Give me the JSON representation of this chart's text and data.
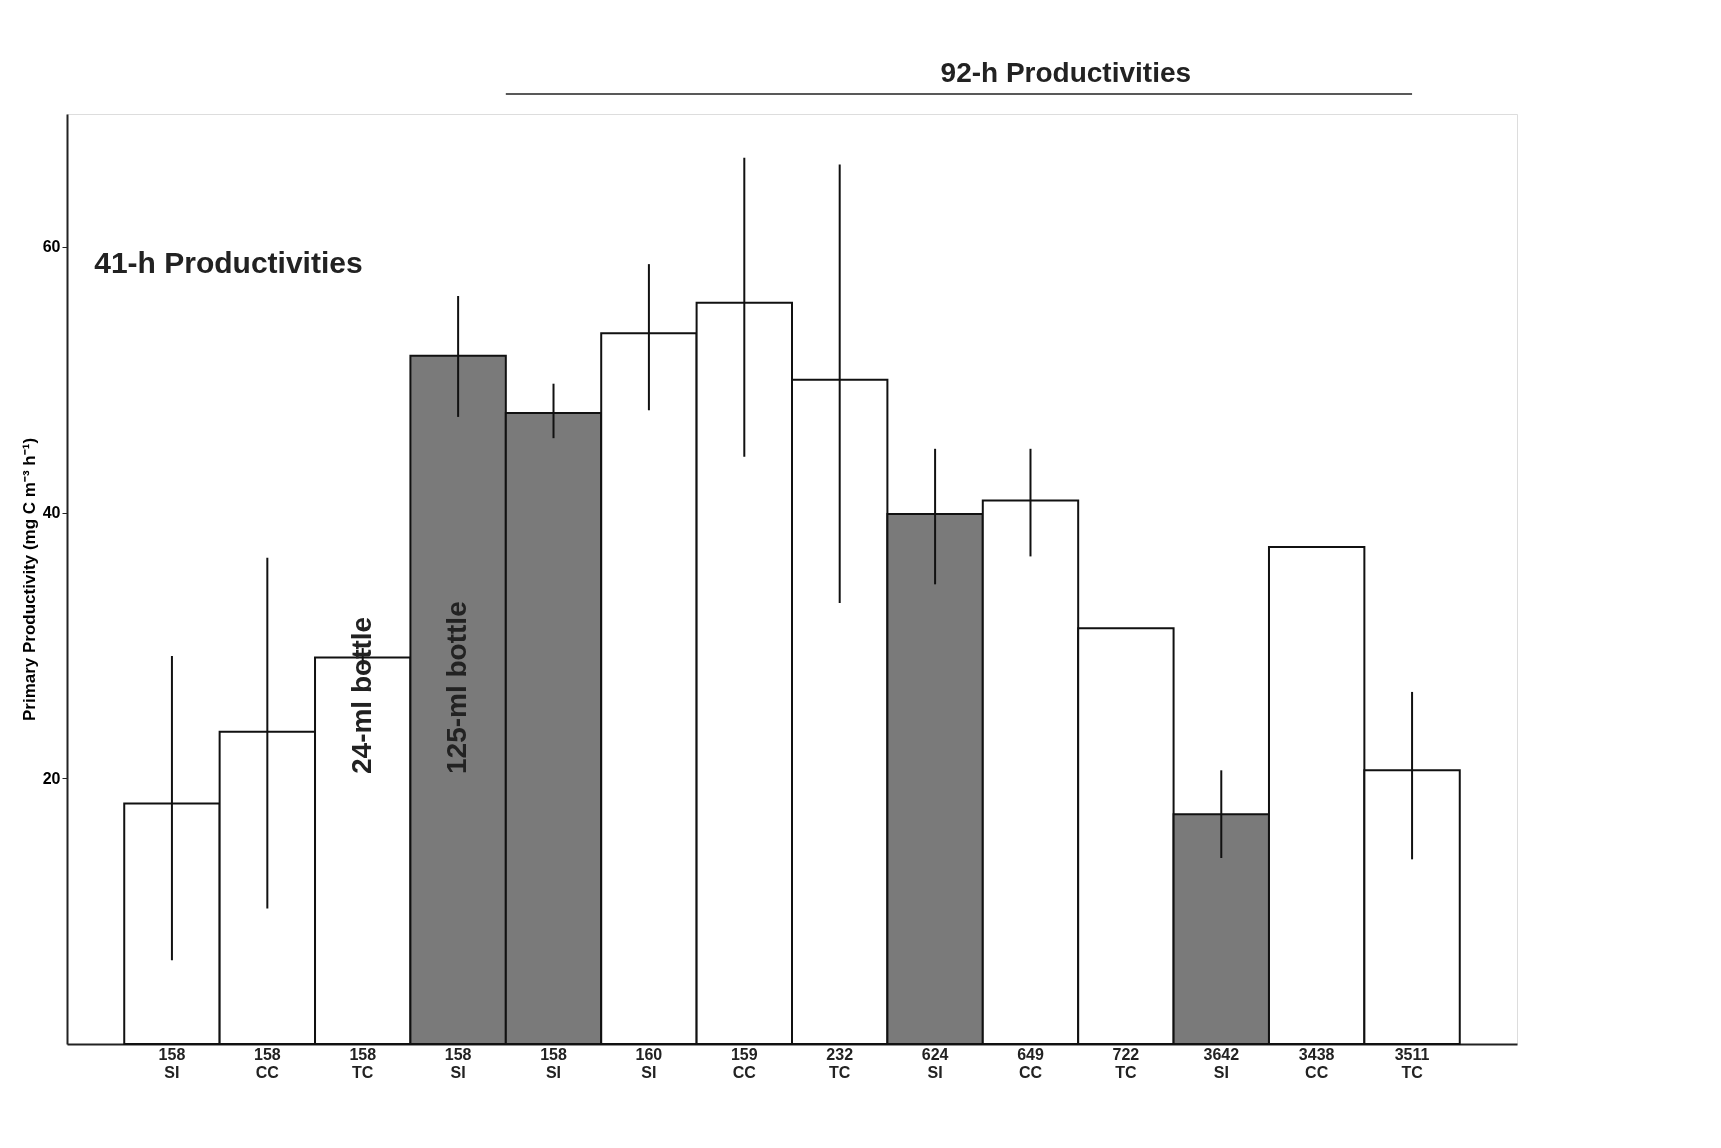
{
  "chart_data": {
    "type": "bar",
    "ylabel": "Primary Productivity (mg C m⁻³ h⁻¹)",
    "categories": [
      "158\nSI",
      "158\nCC",
      "158\nTC",
      "158\nSI",
      "158\nSI",
      "160\nSI",
      "159\nCC",
      "232\nTC",
      "624\nSI",
      "649\nCC",
      "722\nTC",
      "3642\nSI",
      "3438\nCC",
      "3511\nTC"
    ],
    "values": [
      18.1,
      23.5,
      29.1,
      51.8,
      47.5,
      53.5,
      55.8,
      50.0,
      39.9,
      40.9,
      31.3,
      17.3,
      37.4,
      20.6
    ],
    "colors": [
      "#ffffff",
      "#ffffff",
      "#ffffff",
      "#7a7a7a",
      "#7a7a7a",
      "#ffffff",
      "#ffffff",
      "#ffffff",
      "#7a7a7a",
      "#ffffff",
      "#ffffff",
      "#7a7a7a",
      "#ffffff",
      "#ffffff"
    ],
    "errors": [
      [
        6.3,
        29.2
      ],
      [
        10.2,
        36.6
      ],
      [
        28.2,
        29.8
      ],
      [
        47.2,
        56.3
      ],
      [
        45.6,
        49.7
      ],
      [
        47.7,
        58.7
      ],
      [
        44.2,
        66.7
      ],
      [
        33.2,
        66.2
      ],
      [
        34.6,
        44.8
      ],
      [
        36.7,
        44.8
      ],
      null,
      [
        14.0,
        20.6
      ],
      null,
      [
        13.9,
        26.5
      ]
    ],
    "ylim": [
      0,
      70
    ],
    "yticks": [
      20,
      40,
      60
    ],
    "grid": false,
    "annotations": [
      "41-h Productivities",
      "92-h Productivities",
      "24-ml bottle",
      "125-ml bottle"
    ]
  }
}
